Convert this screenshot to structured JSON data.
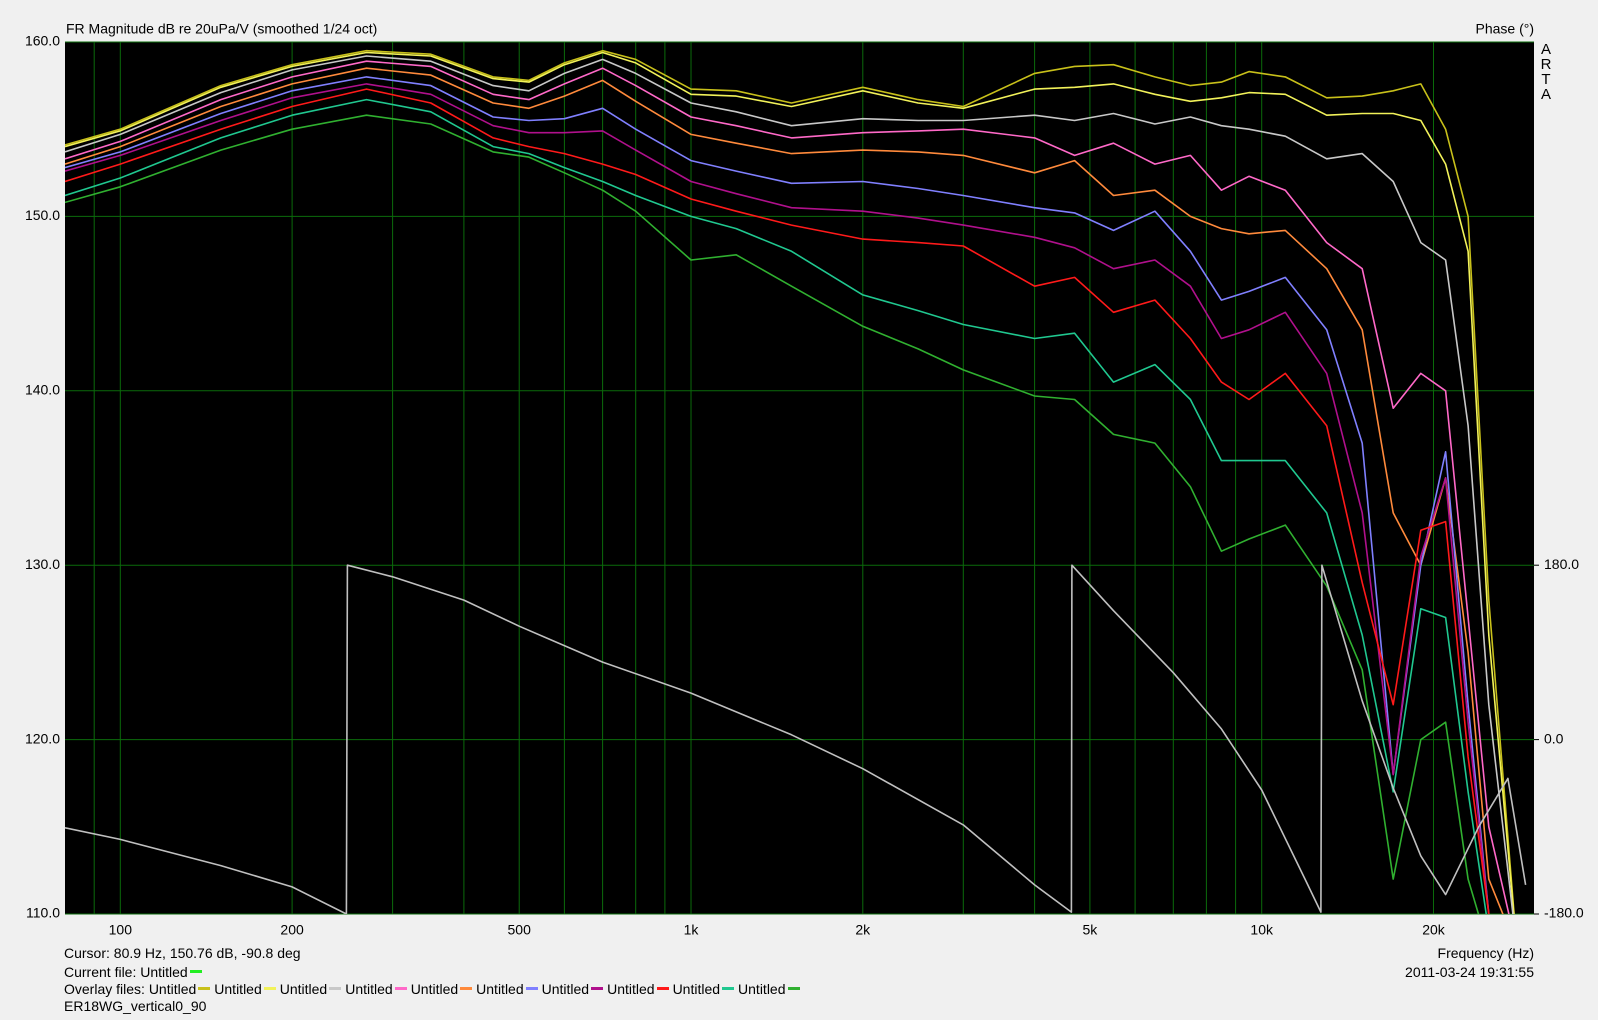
{
  "chart_data": {
    "type": "line",
    "title": "FR Magnitude dB re 20uPa/V (smoothed 1/24 oct)",
    "y2label": "Phase (°)",
    "brand": "ARTA",
    "xlabel": "Frequency (Hz)",
    "cursor": "Cursor: 80.9 Hz, 150.76 dB, -90.8 deg",
    "timestamp": "2011-03-24  19:31:55",
    "current_file": {
      "label": "Current file:",
      "name": "Untitled",
      "color": "#22ee22"
    },
    "overlay_label": "Overlay files:",
    "file_name": "ER18WG_vertical0_90",
    "log_x": true,
    "grid": true,
    "grid_color": "#0b6b0b",
    "xlim": [
      80,
      30000
    ],
    "xticks": [
      100,
      200,
      500,
      {
        "value": 1000,
        "label": "1k"
      },
      {
        "value": 2000,
        "label": "2k"
      },
      {
        "value": 5000,
        "label": "5k"
      },
      {
        "value": 10000,
        "label": "10k"
      },
      {
        "value": 20000,
        "label": "20k"
      }
    ],
    "x_minor_ticks": [
      90,
      300,
      400,
      600,
      700,
      800,
      900,
      3000,
      4000,
      6000,
      7000,
      8000,
      9000
    ],
    "ylim": [
      110,
      160
    ],
    "yticks": [
      {
        "value": 110,
        "label": "110.0"
      },
      {
        "value": 120,
        "label": "120.0"
      },
      {
        "value": 130,
        "label": "130.0"
      },
      {
        "value": 140,
        "label": "140.0"
      },
      {
        "value": 150,
        "label": "150.0"
      },
      {
        "value": 160,
        "label": "160.0"
      }
    ],
    "y2lim": [
      -180,
      720
    ],
    "y2ticks": [
      {
        "value": -180,
        "label": "-180.0"
      },
      {
        "value": 0,
        "label": "0.0"
      },
      {
        "value": 180,
        "label": "180.0"
      }
    ],
    "x": [
      80,
      100,
      150,
      200,
      270,
      350,
      450,
      520,
      600,
      700,
      800,
      1000,
      1200,
      1500,
      2000,
      2500,
      3000,
      4000,
      4700,
      5500,
      6500,
      7500,
      8500,
      9500,
      11000,
      13000,
      15000,
      17000,
      19000,
      21000,
      23000,
      25000,
      28000
    ],
    "series": [
      {
        "name": "Untitled",
        "color": "#c8c01a",
        "values": [
          154.1,
          155.0,
          157.5,
          158.7,
          159.5,
          159.3,
          158.0,
          157.8,
          158.8,
          159.5,
          159.0,
          157.3,
          157.2,
          156.5,
          157.4,
          156.7,
          156.3,
          158.2,
          158.6,
          158.7,
          158.0,
          157.5,
          157.7,
          158.3,
          158.0,
          156.8,
          156.9,
          157.2,
          157.6,
          155.0,
          150.0,
          128.0,
          108.0
        ]
      },
      {
        "name": "Untitled",
        "color": "#f2f25a",
        "values": [
          154.0,
          154.9,
          157.4,
          158.6,
          159.4,
          159.2,
          157.9,
          157.7,
          158.7,
          159.4,
          158.8,
          157.0,
          156.9,
          156.3,
          157.2,
          156.5,
          156.2,
          157.3,
          157.4,
          157.6,
          157.0,
          156.6,
          156.8,
          157.1,
          157.0,
          155.8,
          155.9,
          155.9,
          155.5,
          153.0,
          148.0,
          126.0,
          108.0
        ]
      },
      {
        "name": "Untitled",
        "color": "#c8c8c8",
        "values": [
          153.7,
          154.7,
          157.1,
          158.4,
          159.2,
          158.9,
          157.5,
          157.2,
          158.2,
          159.0,
          158.2,
          156.5,
          156.0,
          155.2,
          155.6,
          155.5,
          155.5,
          155.8,
          155.5,
          155.9,
          155.3,
          155.7,
          155.2,
          155.0,
          154.6,
          153.3,
          153.6,
          152.0,
          148.5,
          147.5,
          138.0,
          122.0,
          108.0
        ]
      },
      {
        "name": "Untitled",
        "color": "#ff69c8",
        "values": [
          153.3,
          154.3,
          156.7,
          158.0,
          158.9,
          158.6,
          157.0,
          156.7,
          157.6,
          158.5,
          157.5,
          155.7,
          155.2,
          154.5,
          154.8,
          154.9,
          155.0,
          154.5,
          153.5,
          154.2,
          153.0,
          153.5,
          151.5,
          152.3,
          151.5,
          148.5,
          147.0,
          139.0,
          141.0,
          140.0,
          127.0,
          115.0,
          108.0
        ]
      },
      {
        "name": "Untitled",
        "color": "#ff8a3c",
        "values": [
          153.0,
          154.0,
          156.3,
          157.6,
          158.5,
          158.1,
          156.5,
          156.2,
          156.9,
          157.8,
          156.6,
          154.7,
          154.2,
          153.6,
          153.8,
          153.7,
          153.5,
          152.5,
          153.2,
          151.2,
          151.5,
          150.0,
          149.3,
          149.0,
          149.2,
          147.0,
          143.5,
          133.0,
          130.0,
          135.0,
          125.0,
          112.0,
          108.0
        ]
      },
      {
        "name": "Untitled",
        "color": "#8080ff",
        "values": [
          152.8,
          153.7,
          155.9,
          157.2,
          158.0,
          157.5,
          155.7,
          155.5,
          155.6,
          156.2,
          155.0,
          153.2,
          152.6,
          151.9,
          152.0,
          151.6,
          151.2,
          150.5,
          150.2,
          149.2,
          150.3,
          148.0,
          145.2,
          145.7,
          146.5,
          143.5,
          137.0,
          118.0,
          130.0,
          136.5,
          122.0,
          110.0,
          108.0
        ]
      },
      {
        "name": "Untitled",
        "color": "#b0108c",
        "values": [
          152.6,
          153.5,
          155.5,
          156.8,
          157.6,
          157.0,
          155.2,
          154.8,
          154.8,
          154.9,
          153.8,
          152.0,
          151.3,
          150.5,
          150.3,
          149.9,
          149.5,
          148.8,
          148.2,
          147.0,
          147.5,
          146.0,
          143.0,
          143.5,
          144.5,
          141.0,
          133.0,
          118.0,
          130.5,
          135.0,
          121.0,
          110.0,
          108.0
        ]
      },
      {
        "name": "Untitled",
        "color": "#ff1a1a",
        "values": [
          152.0,
          153.0,
          155.0,
          156.3,
          157.3,
          156.5,
          154.5,
          154.0,
          153.6,
          153.0,
          152.4,
          151.0,
          150.3,
          149.5,
          148.7,
          148.5,
          148.3,
          146.0,
          146.5,
          144.5,
          145.2,
          143.0,
          140.5,
          139.5,
          141.0,
          138.0,
          129.0,
          122.0,
          132.0,
          132.5,
          119.0,
          110.0,
          108.0
        ]
      },
      {
        "name": "Untitled",
        "color": "#20c890",
        "values": [
          151.2,
          152.2,
          154.5,
          155.8,
          156.7,
          156.0,
          154.0,
          153.6,
          152.8,
          152.0,
          151.2,
          150.0,
          149.3,
          148.0,
          145.5,
          144.6,
          143.8,
          143.0,
          143.3,
          140.5,
          141.5,
          139.5,
          136.0,
          136.0,
          136.0,
          133.0,
          126.0,
          117.0,
          127.5,
          127.0,
          117.0,
          109.0,
          108.0
        ]
      },
      {
        "name": "Untitled",
        "color": "#30b030",
        "values": [
          150.8,
          151.7,
          153.8,
          155.0,
          155.8,
          155.3,
          153.7,
          153.4,
          152.5,
          151.5,
          150.3,
          147.5,
          147.8,
          146.0,
          143.7,
          142.4,
          141.2,
          139.7,
          139.5,
          137.5,
          137.0,
          134.5,
          130.8,
          131.5,
          132.3,
          128.8,
          124.0,
          112.0,
          120.0,
          121.0,
          112.0,
          108.0,
          108.0
        ]
      },
      {
        "color": "#c0c0c0",
        "axis": "y2",
        "x": [
          80,
          100,
          150,
          200,
          249,
          250,
          300,
          400,
          500,
          700,
          1000,
          1500,
          2000,
          3000,
          4000,
          4640,
          4650,
          5500,
          7000,
          8500,
          10000,
          12000,
          12700,
          12750,
          15000,
          17000,
          19000,
          21000,
          24000,
          27000,
          29000
        ],
        "values": [
          -91,
          -103,
          -130,
          -152,
          -180,
          180,
          168,
          144,
          117,
          80,
          48,
          5,
          -30,
          -88,
          -150,
          -178,
          180,
          133,
          69,
          11,
          -52,
          -148,
          -178,
          180,
          40,
          -50,
          -120,
          -160,
          -90,
          -40,
          -150
        ]
      }
    ]
  }
}
